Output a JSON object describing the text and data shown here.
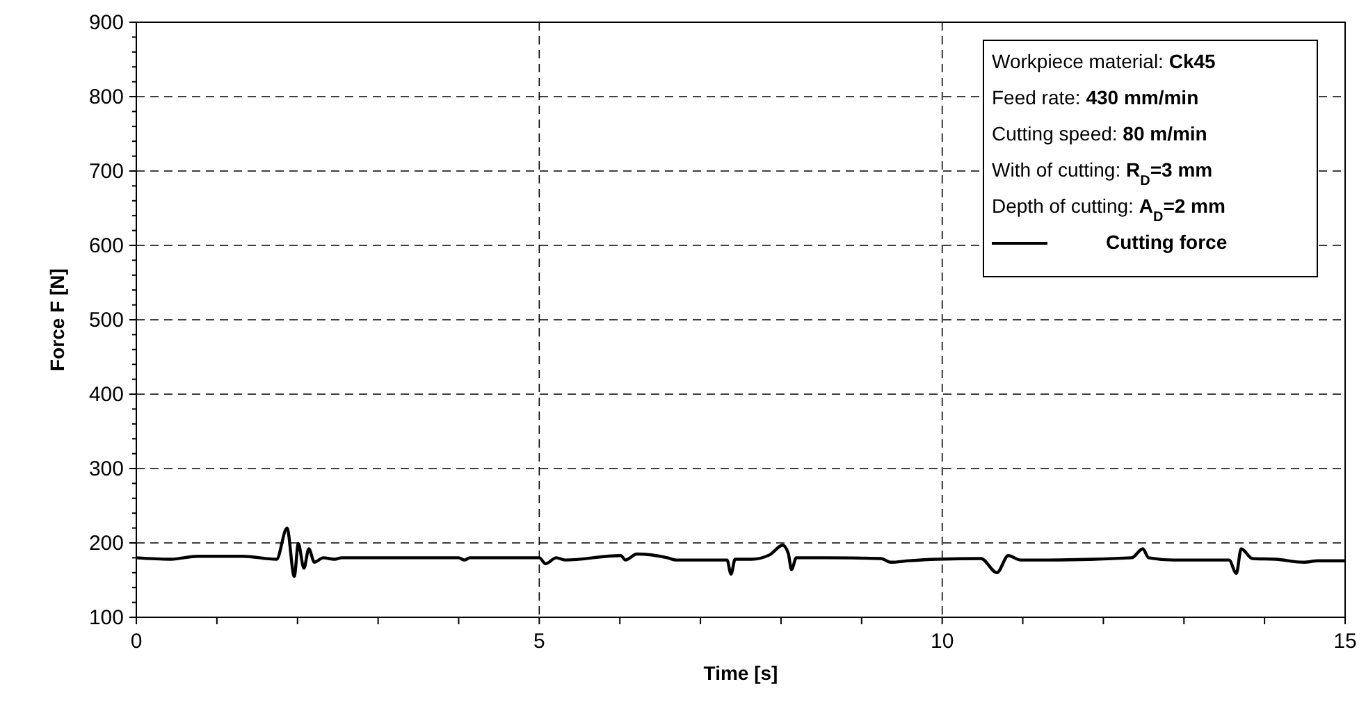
{
  "chart_data": {
    "type": "line",
    "xlabel": "Time [s]",
    "ylabel": "Force F [N]",
    "xlim": [
      0,
      15
    ],
    "ylim": [
      100,
      900
    ],
    "xticks": [
      0,
      {
        "value": 1,
        "label": null
      },
      {
        "value": 2,
        "label": null
      },
      {
        "value": 3,
        "label": null
      },
      {
        "value": 4,
        "label": null
      },
      5,
      {
        "value": 6,
        "label": null
      },
      {
        "value": 7,
        "label": null
      },
      {
        "value": 8,
        "label": null
      },
      {
        "value": 9,
        "label": null
      },
      10,
      {
        "value": 11,
        "label": null
      },
      {
        "value": 12,
        "label": null
      },
      {
        "value": 13,
        "label": null
      },
      {
        "value": 14,
        "label": null
      },
      15
    ],
    "yticks": [
      100,
      {
        "value": 120,
        "label": null
      },
      {
        "value": 140,
        "label": null
      },
      {
        "value": 160,
        "label": null
      },
      {
        "value": 180,
        "label": null
      },
      200,
      {
        "value": 220,
        "label": null
      },
      {
        "value": 240,
        "label": null
      },
      {
        "value": 260,
        "label": null
      },
      {
        "value": 280,
        "label": null
      },
      300,
      {
        "value": 320,
        "label": null
      },
      {
        "value": 340,
        "label": null
      },
      {
        "value": 360,
        "label": null
      },
      {
        "value": 380,
        "label": null
      },
      400,
      {
        "value": 420,
        "label": null
      },
      {
        "value": 440,
        "label": null
      },
      {
        "value": 460,
        "label": null
      },
      {
        "value": 480,
        "label": null
      },
      500,
      {
        "value": 520,
        "label": null
      },
      {
        "value": 540,
        "label": null
      },
      {
        "value": 560,
        "label": null
      },
      {
        "value": 580,
        "label": null
      },
      600,
      {
        "value": 620,
        "label": null
      },
      {
        "value": 640,
        "label": null
      },
      {
        "value": 660,
        "label": null
      },
      {
        "value": 680,
        "label": null
      },
      700,
      {
        "value": 720,
        "label": null
      },
      {
        "value": 740,
        "label": null
      },
      {
        "value": 760,
        "label": null
      },
      {
        "value": 780,
        "label": null
      },
      800,
      {
        "value": 820,
        "label": null
      },
      {
        "value": 840,
        "label": null
      },
      {
        "value": 860,
        "label": null
      },
      {
        "value": 880,
        "label": null
      },
      900
    ],
    "grid": true,
    "legend": "top right",
    "line_style": "solid",
    "annotations": [
      "Workpiece material: Ck45",
      "Feed rate: 430 mm/min",
      "Cutting speed: 80 m/min",
      "With of cutting: R$_{D}$=3 mm",
      "Depth of cutting: A$_{D}$=2 mm"
    ],
    "series": [
      {
        "name": "Cutting force",
        "color": "#000000",
        "x": [
          0,
          0.42,
          0.76,
          1.32,
          1.74,
          1.87,
          1.96,
          2.01,
          2.08,
          2.14,
          2.21,
          2.32,
          2.46,
          2.55,
          4.0,
          4.07,
          4.14,
          5.0,
          5.08,
          5.21,
          5.32,
          6.01,
          6.07,
          6.21,
          6.59,
          6.7,
          7.33,
          7.38,
          7.43,
          7.63,
          7.86,
          8.02,
          8.09,
          8.13,
          8.19,
          8.55,
          9.24,
          9.36,
          9.59,
          9.93,
          10.48,
          10.68,
          10.82,
          10.97,
          11.31,
          12.35,
          12.49,
          12.56,
          12.87,
          13.56,
          13.65,
          13.71,
          13.85,
          14.14,
          14.49,
          14.66,
          15
        ],
        "values": [
          180,
          178,
          182,
          182,
          178,
          220,
          155,
          199,
          166,
          192,
          174,
          180,
          178,
          180,
          180,
          177,
          180,
          180,
          172,
          180,
          177,
          183,
          177,
          185,
          180,
          177,
          177,
          158,
          178,
          178,
          184,
          197,
          186,
          164,
          180,
          180,
          179,
          174,
          176,
          178,
          179,
          160,
          183,
          177,
          177,
          180,
          192,
          180,
          177,
          177,
          159,
          192,
          179,
          178,
          174,
          176,
          176
        ]
      }
    ]
  }
}
